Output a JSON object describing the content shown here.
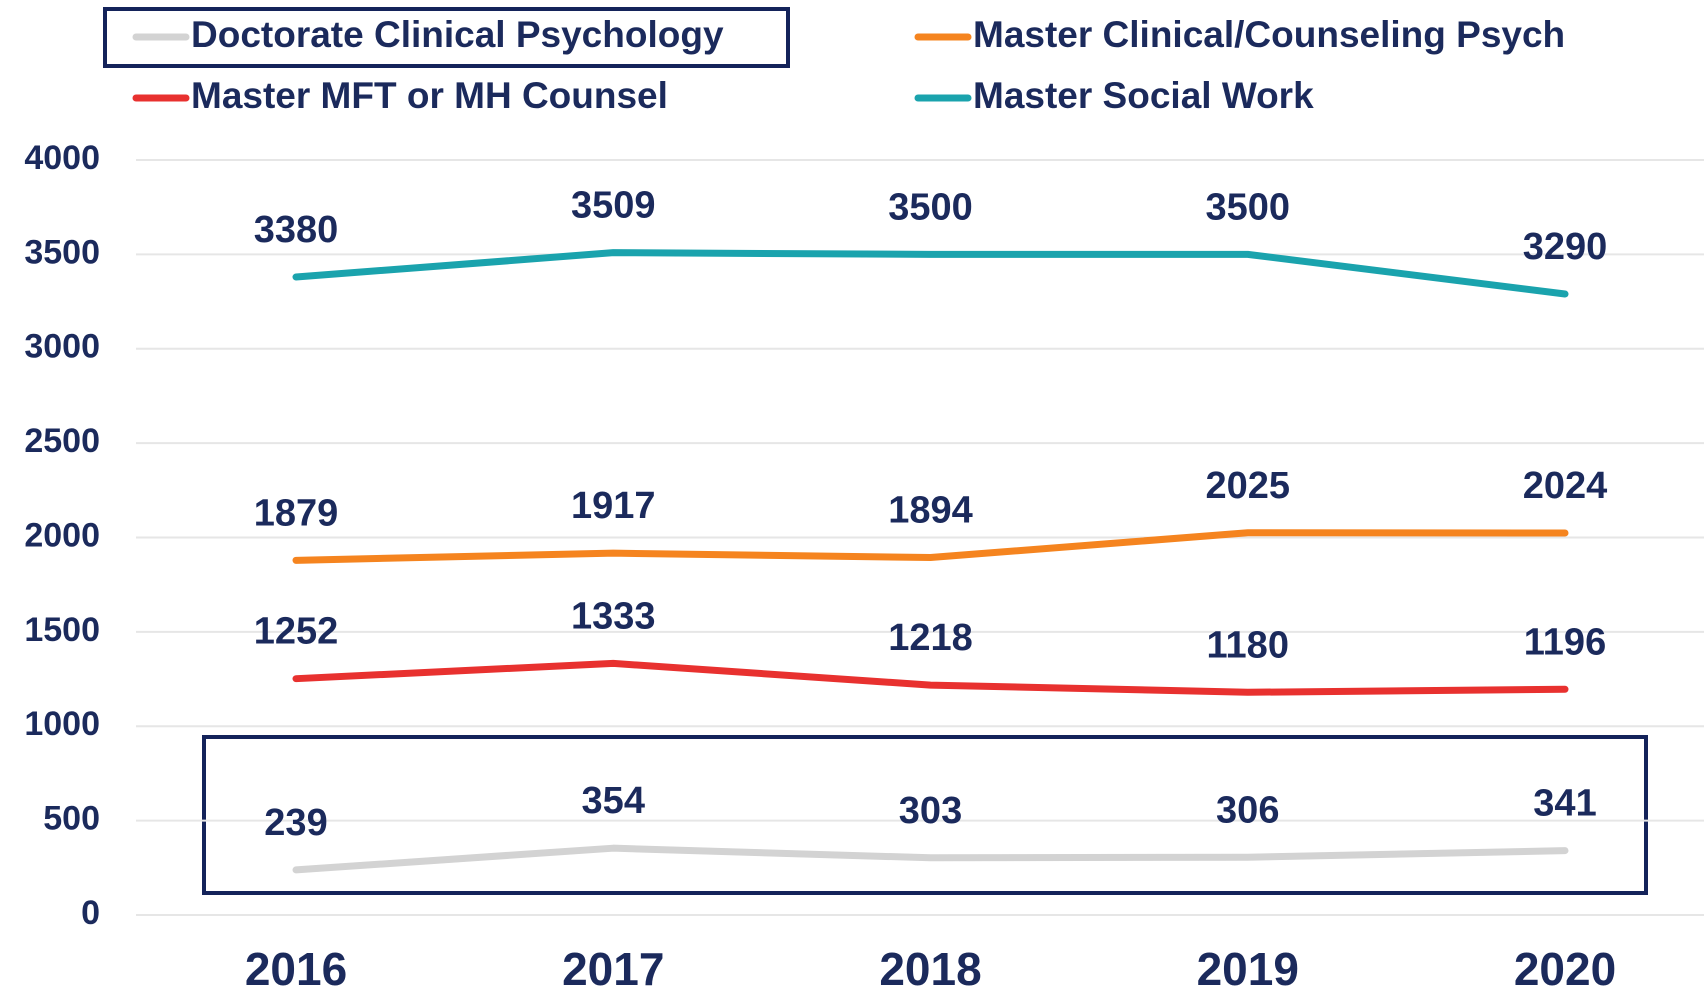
{
  "chart_data": {
    "type": "line",
    "categories": [
      "2016",
      "2017",
      "2018",
      "2019",
      "2020"
    ],
    "series": [
      {
        "name": "Doctorate Clinical Psychology",
        "color": "#d3d3d3",
        "values": [
          239,
          354,
          303,
          306,
          341
        ]
      },
      {
        "name": "Master Clinical/Counseling Psych",
        "color": "#f5841f",
        "values": [
          1879,
          1917,
          1894,
          2025,
          2024
        ]
      },
      {
        "name": "Master MFT or MH Counsel",
        "color": "#e8312f",
        "values": [
          1252,
          1333,
          1218,
          1180,
          1196
        ]
      },
      {
        "name": "Master Social Work",
        "color": "#1aa3ad",
        "values": [
          3380,
          3509,
          3500,
          3500,
          3290
        ]
      }
    ],
    "ylim": [
      0,
      4000
    ],
    "yticks": [
      0,
      500,
      1000,
      1500,
      2000,
      2500,
      3000,
      3500,
      4000
    ],
    "grid": true
  }
}
